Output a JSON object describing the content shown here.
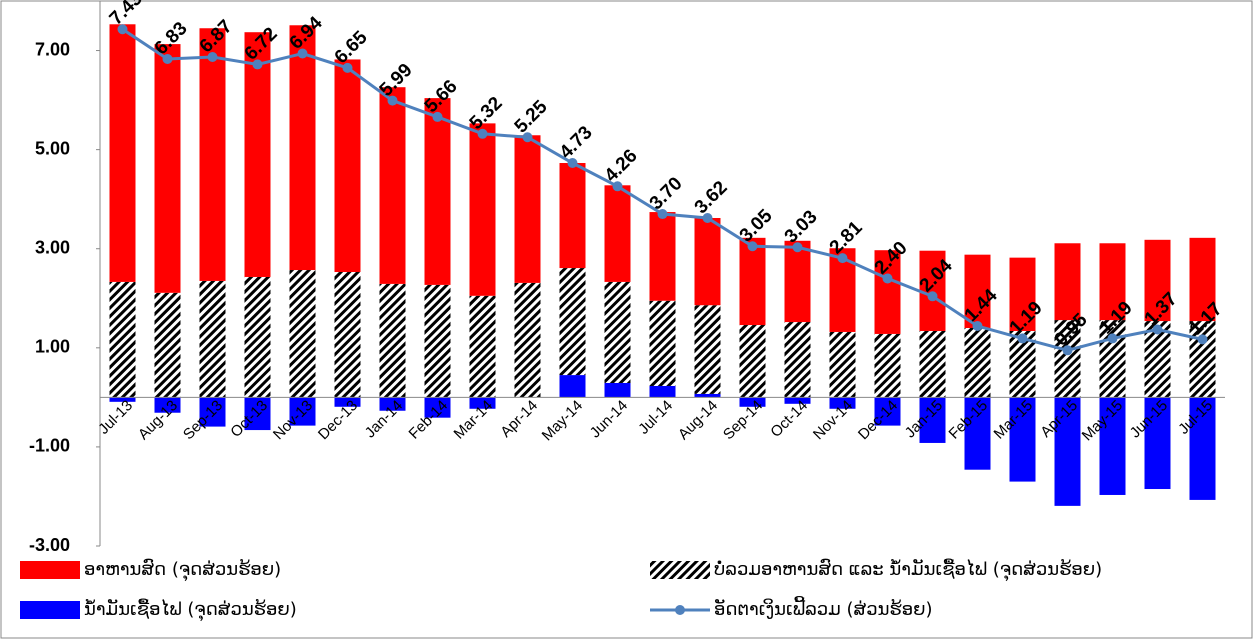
{
  "chart_data": {
    "type": "bar",
    "categories": [
      "Jul-13",
      "Aug-13",
      "Sep-13",
      "Oct-13",
      "Nov-13",
      "Dec-13",
      "Jan-14",
      "Feb-14",
      "Mar-14",
      "Apr-14",
      "May-14",
      "Jun-14",
      "Jul-14",
      "Aug-14",
      "Sep-14",
      "Oct-14",
      "Nov-14",
      "Dec-14",
      "Jan-15",
      "Feb-15",
      "Mar-15",
      "Apr-15",
      "May-15",
      "Jun-15",
      "Jul-15"
    ],
    "series": [
      {
        "name": "ນ້ຳມັນເຊື້ອໄຟ (ຈຸດສ່ວນຮ້ອຍ)",
        "color": "#0000ff",
        "values": [
          -0.09,
          -0.31,
          -0.59,
          -0.66,
          -0.57,
          -0.19,
          -0.27,
          -0.41,
          -0.23,
          0,
          0.45,
          0.29,
          0.23,
          0.07,
          -0.19,
          -0.13,
          -0.23,
          -0.57,
          -0.92,
          -1.46,
          -1.7,
          -2.19,
          -1.97,
          -1.85,
          -2.07
        ]
      },
      {
        "name": "ບໍ່ລວມອາຫານສົດ ແລະ ນ້ຳມັນເຊື້ອໄຟ (ຈຸດສ່ວນຮ້ອຍ)",
        "color": "#000000",
        "hatch": true,
        "values": [
          2.33,
          2.11,
          2.35,
          2.43,
          2.57,
          2.53,
          2.29,
          2.27,
          2.05,
          2.31,
          2.16,
          2.04,
          1.72,
          1.79,
          1.46,
          1.52,
          1.32,
          1.28,
          1.34,
          1.4,
          1.34,
          1.56,
          1.56,
          1.54,
          1.54
        ]
      },
      {
        "name": "ອາຫານສົດ (ຈຸດສ່ວນຮ້ອຍ)",
        "color": "#ff0000",
        "values": [
          5.2,
          5.02,
          5.1,
          4.94,
          4.94,
          4.29,
          3.97,
          3.77,
          3.48,
          2.98,
          2.12,
          1.95,
          1.79,
          1.76,
          1.76,
          1.64,
          1.69,
          1.69,
          1.62,
          1.48,
          1.48,
          1.55,
          1.55,
          1.64,
          1.68
        ]
      },
      {
        "name": "ອັດຕາເງິນເຟີ້ລວມ (ສ່ວນຮ້ອຍ)",
        "type": "line",
        "color": "#4f81bd",
        "values": [
          7.43,
          6.83,
          6.87,
          6.72,
          6.94,
          6.65,
          5.99,
          5.66,
          5.32,
          5.25,
          4.73,
          4.26,
          3.7,
          3.62,
          3.05,
          3.03,
          2.81,
          2.4,
          2.04,
          1.44,
          1.19,
          0.95,
          1.19,
          1.37,
          1.17
        ],
        "value_labels": [
          "7.43",
          "6.83",
          "6.87",
          "6.72",
          "6.94",
          "6.65",
          "5.99",
          "5.66",
          "5.32",
          "5.25",
          "4.73",
          "4.26",
          "3.70",
          "3.62",
          "3.05",
          "3.03",
          "2.81",
          "2.40",
          "2.04",
          "1.44",
          "1.19",
          "0.95",
          "1.19",
          "1.37",
          "1.17"
        ]
      }
    ],
    "ylim": [
      -3,
      8
    ],
    "yticks": [
      {
        "value": -3,
        "label": "-3.00"
      },
      {
        "value": -1,
        "label": "-1.00"
      },
      {
        "value": 1,
        "label": "1.00"
      },
      {
        "value": 3,
        "label": "3.00"
      },
      {
        "value": 5,
        "label": "5.00"
      },
      {
        "value": 7,
        "label": "7.00"
      }
    ],
    "grid": false
  }
}
